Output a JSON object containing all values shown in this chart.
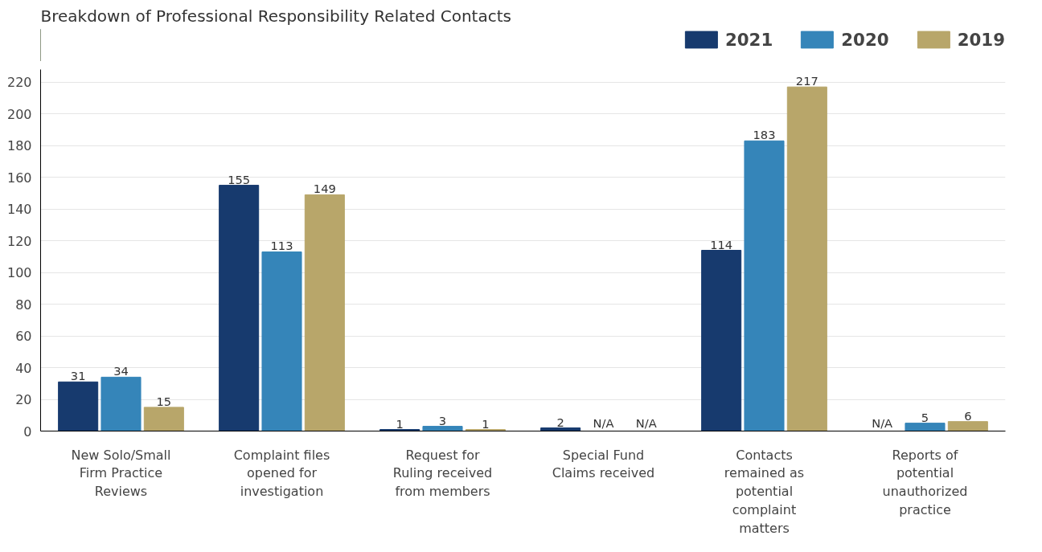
{
  "chart_data": {
    "type": "bar",
    "title": "Breakdown of Professional Responsibility Related Contacts",
    "categories": [
      "New Solo/Small Firm Practice Reviews",
      "Complaint files opened for investigation",
      "Request for Ruling received from members",
      "Special Fund Claims received",
      "Contacts remained as potential complaint matters",
      "Reports of potential unauthorized practice"
    ],
    "series": [
      {
        "name": "2021",
        "color": "#173a6e",
        "values": [
          31,
          155,
          1,
          2,
          114,
          null
        ],
        "value_labels": [
          "31",
          "155",
          "1",
          "2",
          "114",
          "N/A"
        ]
      },
      {
        "name": "2020",
        "color": "#3585b9",
        "values": [
          34,
          113,
          3,
          null,
          183,
          5
        ],
        "value_labels": [
          "34",
          "113",
          "3",
          "N/A",
          "183",
          "5"
        ]
      },
      {
        "name": "2019",
        "color": "#b8a66a",
        "values": [
          15,
          149,
          1,
          null,
          217,
          6
        ],
        "value_labels": [
          "15",
          "149",
          "1",
          "N/A",
          "217",
          "6"
        ]
      }
    ],
    "ylim": [
      0,
      228
    ],
    "yticks": [
      0,
      20,
      40,
      60,
      80,
      100,
      120,
      140,
      160,
      180,
      200,
      220
    ],
    "grid": "y",
    "legend": "top right"
  }
}
